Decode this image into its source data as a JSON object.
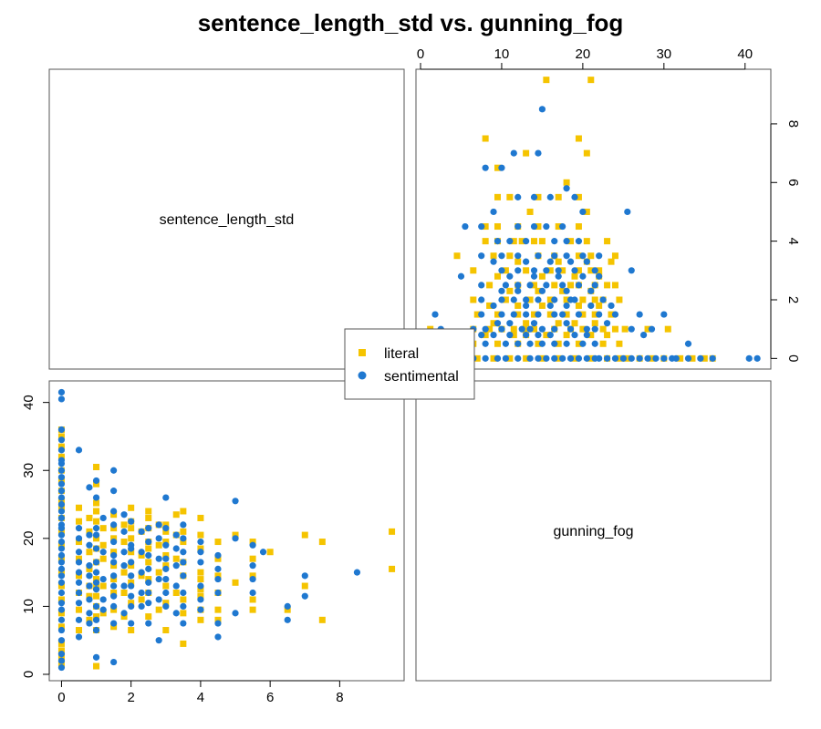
{
  "chart_data": {
    "type": "scatter",
    "subtype": "pairs-matrix",
    "title": "sentence_length_std vs. gunning_fog",
    "variables": [
      "sentence_length_std",
      "gunning_fog"
    ],
    "axes": {
      "sentence_length_std": {
        "range": [
          -0.3,
          9.8
        ],
        "ticks": [
          0,
          2,
          4,
          6,
          8
        ]
      },
      "gunning_fog": {
        "range": [
          0,
          42.5
        ],
        "ticks": [
          0,
          10,
          20,
          30,
          40
        ]
      }
    },
    "legend": {
      "placement": "center",
      "entries": [
        "literal",
        "sentimental"
      ]
    },
    "grid": false,
    "series": [
      {
        "name": "literal",
        "color": "#F5C400",
        "marker": "square",
        "points": [
          [
            0,
            1.5
          ],
          [
            0,
            2.5
          ],
          [
            0,
            3.5
          ],
          [
            0,
            4.5
          ],
          [
            0,
            7
          ],
          [
            0,
            9
          ],
          [
            0,
            11
          ],
          [
            0,
            13
          ],
          [
            0,
            15
          ],
          [
            0,
            17
          ],
          [
            0,
            19
          ],
          [
            0,
            21
          ],
          [
            0,
            23
          ],
          [
            0,
            24.5
          ],
          [
            0,
            25.5
          ],
          [
            0,
            27
          ],
          [
            0,
            28.5
          ],
          [
            0,
            30
          ],
          [
            0,
            32
          ],
          [
            0,
            33.5
          ],
          [
            0,
            35
          ],
          [
            0,
            36
          ],
          [
            0.5,
            6.5
          ],
          [
            0.5,
            9.5
          ],
          [
            0.5,
            12
          ],
          [
            0.5,
            14.5
          ],
          [
            0.5,
            17
          ],
          [
            0.5,
            19.5
          ],
          [
            0.5,
            22.5
          ],
          [
            0.5,
            24.5
          ],
          [
            0.8,
            8
          ],
          [
            0.8,
            11.5
          ],
          [
            0.8,
            13
          ],
          [
            0.8,
            15.5
          ],
          [
            0.8,
            18
          ],
          [
            0.8,
            21
          ],
          [
            0.8,
            23
          ],
          [
            1.0,
            1.2
          ],
          [
            1.0,
            6.5
          ],
          [
            1.0,
            8.5
          ],
          [
            1.0,
            10
          ],
          [
            1.0,
            11.5
          ],
          [
            1.0,
            12.8
          ],
          [
            1.0,
            14
          ],
          [
            1.0,
            16.5
          ],
          [
            1.0,
            18.5
          ],
          [
            1.0,
            20
          ],
          [
            1.0,
            22.5
          ],
          [
            1.0,
            24
          ],
          [
            1.0,
            25.2
          ],
          [
            1.0,
            28
          ],
          [
            1.0,
            30.5
          ],
          [
            1.2,
            9
          ],
          [
            1.2,
            13
          ],
          [
            1.2,
            17
          ],
          [
            1.2,
            19
          ],
          [
            1.2,
            21.5
          ],
          [
            1.5,
            7
          ],
          [
            1.5,
            9.5
          ],
          [
            1.5,
            12
          ],
          [
            1.5,
            14
          ],
          [
            1.5,
            16
          ],
          [
            1.5,
            18
          ],
          [
            1.5,
            20
          ],
          [
            1.5,
            21.5
          ],
          [
            1.5,
            23.5
          ],
          [
            1.8,
            8.5
          ],
          [
            1.8,
            12
          ],
          [
            1.8,
            15
          ],
          [
            1.8,
            19.5
          ],
          [
            1.8,
            22
          ],
          [
            2.0,
            6.5
          ],
          [
            2.0,
            10.5
          ],
          [
            2.0,
            13.5
          ],
          [
            2.0,
            16
          ],
          [
            2.0,
            18
          ],
          [
            2.0,
            20
          ],
          [
            2.0,
            21.5
          ],
          [
            2.0,
            22.5
          ],
          [
            2.0,
            24.5
          ],
          [
            2.3,
            11
          ],
          [
            2.3,
            14.5
          ],
          [
            2.3,
            17.5
          ],
          [
            2.3,
            21
          ],
          [
            2.5,
            8.5
          ],
          [
            2.5,
            12
          ],
          [
            2.5,
            14
          ],
          [
            2.5,
            16.5
          ],
          [
            2.5,
            18.5
          ],
          [
            2.5,
            19.5
          ],
          [
            2.5,
            21.5
          ],
          [
            2.5,
            23
          ],
          [
            2.5,
            24
          ],
          [
            2.8,
            9.5
          ],
          [
            2.8,
            15
          ],
          [
            2.8,
            19
          ],
          [
            2.8,
            22
          ],
          [
            3.0,
            6.5
          ],
          [
            3.0,
            10.5
          ],
          [
            3.0,
            13
          ],
          [
            3.0,
            16
          ],
          [
            3.0,
            17.5
          ],
          [
            3.0,
            19.5
          ],
          [
            3.0,
            21
          ],
          [
            3.0,
            22
          ],
          [
            3.3,
            12
          ],
          [
            3.3,
            17
          ],
          [
            3.3,
            20.5
          ],
          [
            3.3,
            23.5
          ],
          [
            3.5,
            4.5
          ],
          [
            3.5,
            9
          ],
          [
            3.5,
            11
          ],
          [
            3.5,
            14.5
          ],
          [
            3.5,
            16.5
          ],
          [
            3.5,
            19.5
          ],
          [
            3.5,
            21
          ],
          [
            3.5,
            24
          ],
          [
            4.0,
            8
          ],
          [
            4.0,
            9.5
          ],
          [
            4.0,
            11.5
          ],
          [
            4.0,
            12.5
          ],
          [
            4.0,
            14
          ],
          [
            4.0,
            15
          ],
          [
            4.0,
            18.5
          ],
          [
            4.0,
            20.5
          ],
          [
            4.0,
            23
          ],
          [
            4.5,
            8
          ],
          [
            4.5,
            9.5
          ],
          [
            4.5,
            12
          ],
          [
            4.5,
            14.5
          ],
          [
            4.5,
            17
          ],
          [
            4.5,
            19.5
          ],
          [
            5.0,
            13.5
          ],
          [
            5.0,
            20.5
          ],
          [
            5.5,
            9.5
          ],
          [
            5.5,
            11
          ],
          [
            5.5,
            14.5
          ],
          [
            5.5,
            17
          ],
          [
            5.5,
            19.5
          ],
          [
            6.0,
            18
          ],
          [
            6.5,
            9.5
          ],
          [
            7.0,
            13
          ],
          [
            7.0,
            20.5
          ],
          [
            7.5,
            8
          ],
          [
            7.5,
            19.5
          ],
          [
            9.5,
            15.5
          ],
          [
            9.5,
            21
          ]
        ]
      },
      {
        "name": "sentimental",
        "color": "#1F78D0",
        "marker": "circle",
        "points": [
          [
            0,
            1
          ],
          [
            0,
            2
          ],
          [
            0,
            3
          ],
          [
            0,
            5
          ],
          [
            0,
            6.5
          ],
          [
            0,
            8
          ],
          [
            0,
            9.5
          ],
          [
            0,
            10.5
          ],
          [
            0,
            12
          ],
          [
            0,
            13.5
          ],
          [
            0,
            14.5
          ],
          [
            0,
            15.5
          ],
          [
            0,
            16.5
          ],
          [
            0,
            17.5
          ],
          [
            0,
            18.5
          ],
          [
            0,
            19.5
          ],
          [
            0,
            20.5
          ],
          [
            0,
            21.5
          ],
          [
            0,
            22
          ],
          [
            0,
            23
          ],
          [
            0,
            24
          ],
          [
            0,
            25
          ],
          [
            0,
            26
          ],
          [
            0,
            27
          ],
          [
            0,
            28
          ],
          [
            0,
            29
          ],
          [
            0,
            30
          ],
          [
            0,
            31
          ],
          [
            0,
            31.5
          ],
          [
            0,
            33
          ],
          [
            0,
            34.5
          ],
          [
            0,
            36
          ],
          [
            0,
            40.5
          ],
          [
            0,
            41.5
          ],
          [
            0.5,
            5.5
          ],
          [
            0.5,
            8
          ],
          [
            0.5,
            10.5
          ],
          [
            0.5,
            12
          ],
          [
            0.5,
            13.5
          ],
          [
            0.5,
            15
          ],
          [
            0.5,
            16.5
          ],
          [
            0.5,
            18
          ],
          [
            0.5,
            20
          ],
          [
            0.5,
            21.5
          ],
          [
            0.5,
            33
          ],
          [
            0.8,
            7.5
          ],
          [
            0.8,
            9
          ],
          [
            0.8,
            11
          ],
          [
            0.8,
            13
          ],
          [
            0.8,
            14.5
          ],
          [
            0.8,
            16
          ],
          [
            0.8,
            19
          ],
          [
            0.8,
            20.5
          ],
          [
            0.8,
            27.5
          ],
          [
            1.0,
            2.5
          ],
          [
            1.0,
            6.5
          ],
          [
            1.0,
            8
          ],
          [
            1.0,
            10
          ],
          [
            1.0,
            12.5
          ],
          [
            1.0,
            13.5
          ],
          [
            1.0,
            15
          ],
          [
            1.0,
            16.5
          ],
          [
            1.0,
            18.5
          ],
          [
            1.0,
            20.5
          ],
          [
            1.0,
            21.5
          ],
          [
            1.0,
            26
          ],
          [
            1.0,
            28.5
          ],
          [
            1.2,
            9.5
          ],
          [
            1.2,
            11
          ],
          [
            1.2,
            14
          ],
          [
            1.2,
            18
          ],
          [
            1.2,
            23
          ],
          [
            1.5,
            1.8
          ],
          [
            1.5,
            7.5
          ],
          [
            1.5,
            10
          ],
          [
            1.5,
            11.5
          ],
          [
            1.5,
            13
          ],
          [
            1.5,
            14.5
          ],
          [
            1.5,
            16.5
          ],
          [
            1.5,
            17.5
          ],
          [
            1.5,
            19.5
          ],
          [
            1.5,
            22
          ],
          [
            1.5,
            24
          ],
          [
            1.5,
            27
          ],
          [
            1.5,
            30
          ],
          [
            1.8,
            9
          ],
          [
            1.8,
            13
          ],
          [
            1.8,
            16
          ],
          [
            1.8,
            18
          ],
          [
            1.8,
            21
          ],
          [
            1.8,
            23.5
          ],
          [
            2.0,
            7.5
          ],
          [
            2.0,
            10
          ],
          [
            2.0,
            11.5
          ],
          [
            2.0,
            13
          ],
          [
            2.0,
            14.5
          ],
          [
            2.0,
            16.5
          ],
          [
            2.0,
            18.5
          ],
          [
            2.0,
            19
          ],
          [
            2.0,
            22.5
          ],
          [
            2.3,
            10
          ],
          [
            2.3,
            12
          ],
          [
            2.3,
            15
          ],
          [
            2.3,
            18
          ],
          [
            2.3,
            21
          ],
          [
            2.5,
            7.5
          ],
          [
            2.5,
            10.5
          ],
          [
            2.5,
            12
          ],
          [
            2.5,
            13.5
          ],
          [
            2.5,
            15.5
          ],
          [
            2.5,
            17.5
          ],
          [
            2.5,
            19.5
          ],
          [
            2.5,
            21.5
          ],
          [
            2.8,
            5
          ],
          [
            2.8,
            11
          ],
          [
            2.8,
            14
          ],
          [
            2.8,
            17
          ],
          [
            2.8,
            20
          ],
          [
            2.8,
            22
          ],
          [
            3.0,
            10
          ],
          [
            3.0,
            12
          ],
          [
            3.0,
            14
          ],
          [
            3.0,
            15.5
          ],
          [
            3.0,
            17
          ],
          [
            3.0,
            19
          ],
          [
            3.0,
            21.5
          ],
          [
            3.0,
            26
          ],
          [
            3.3,
            9
          ],
          [
            3.3,
            13
          ],
          [
            3.3,
            16
          ],
          [
            3.3,
            18.5
          ],
          [
            3.3,
            20.5
          ],
          [
            3.5,
            7.5
          ],
          [
            3.5,
            10
          ],
          [
            3.5,
            12
          ],
          [
            3.5,
            14.5
          ],
          [
            3.5,
            16.5
          ],
          [
            3.5,
            18
          ],
          [
            3.5,
            20
          ],
          [
            3.5,
            22
          ],
          [
            4.0,
            9.5
          ],
          [
            4.0,
            11
          ],
          [
            4.0,
            13
          ],
          [
            4.0,
            16.5
          ],
          [
            4.0,
            18
          ],
          [
            4.0,
            19.5
          ],
          [
            4.5,
            5.5
          ],
          [
            4.5,
            7.5
          ],
          [
            4.5,
            12
          ],
          [
            4.5,
            14
          ],
          [
            4.5,
            15.5
          ],
          [
            4.5,
            17.5
          ],
          [
            5.0,
            9
          ],
          [
            5.0,
            20
          ],
          [
            5.0,
            25.5
          ],
          [
            5.5,
            12
          ],
          [
            5.5,
            14
          ],
          [
            5.5,
            16
          ],
          [
            5.5,
            19
          ],
          [
            5.8,
            18
          ],
          [
            6.5,
            8
          ],
          [
            6.5,
            10
          ],
          [
            7.0,
            11.5
          ],
          [
            7.0,
            14.5
          ],
          [
            8.5,
            15
          ]
        ]
      }
    ]
  }
}
